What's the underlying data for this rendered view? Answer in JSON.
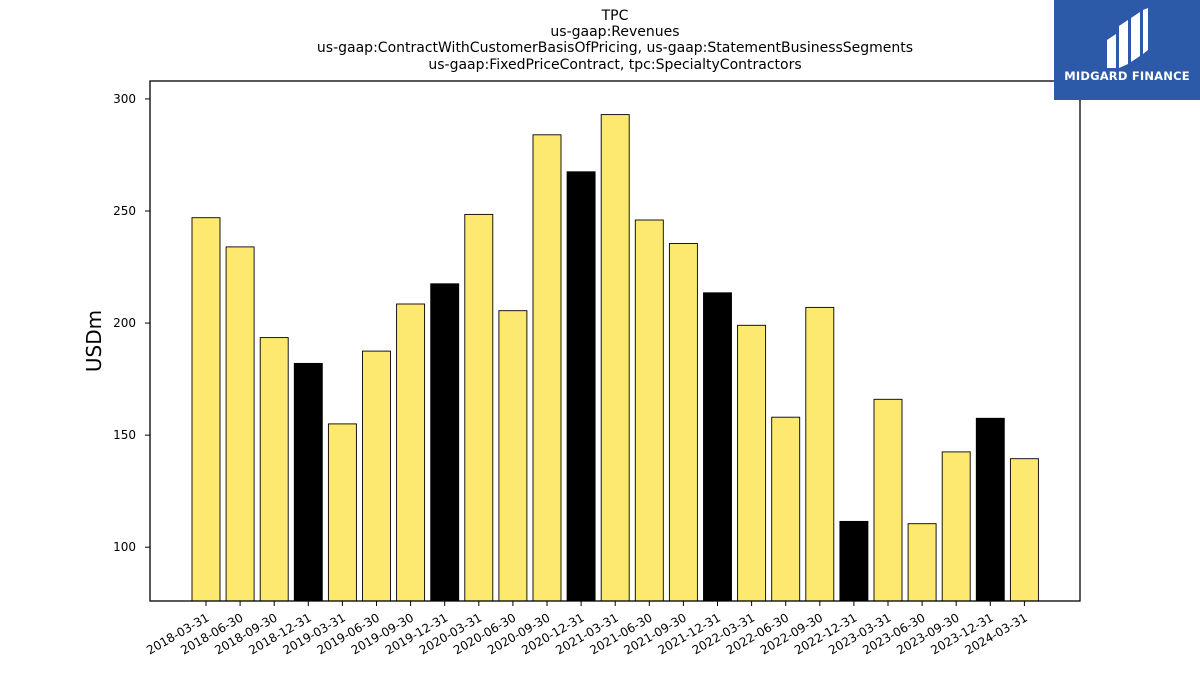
{
  "logo": {
    "text": "MIDGARD FINANCE",
    "background": "#2d5aa8"
  },
  "chart_data": {
    "type": "bar",
    "title": "TPC",
    "subtitle_lines": [
      "us-gaap:Revenues",
      "us-gaap:ContractWithCustomerBasisOfPricing, us-gaap:StatementBusinessSegments",
      "us-gaap:FixedPriceContract, tpc:SpecialtyContractors"
    ],
    "xlabel": "",
    "ylabel": "USDm",
    "ylim": [
      76,
      308
    ],
    "yticks": [
      100,
      150,
      200,
      250,
      300
    ],
    "grid": false,
    "categories": [
      "2018-03-31",
      "2018-06-30",
      "2018-09-30",
      "2018-12-31",
      "2019-03-31",
      "2019-06-30",
      "2019-09-30",
      "2019-12-31",
      "2020-03-31",
      "2020-06-30",
      "2020-09-30",
      "2020-12-31",
      "2021-03-31",
      "2021-06-30",
      "2021-09-30",
      "2021-12-31",
      "2022-03-31",
      "2022-06-30",
      "2022-09-30",
      "2022-12-31",
      "2023-03-31",
      "2023-06-30",
      "2023-09-30",
      "2023-12-31",
      "2024-03-31"
    ],
    "values": [
      247,
      234,
      193.5,
      182,
      155,
      187.5,
      208.5,
      217.5,
      248.5,
      205.5,
      284,
      267.5,
      293,
      246,
      235.5,
      213.5,
      199,
      158,
      207,
      111.5,
      166,
      110.5,
      142.5,
      157.5,
      139.5
    ],
    "bar_colors": {
      "regular": "#fde970",
      "year_end": "#000000"
    },
    "year_end_suffix": "12-31"
  }
}
